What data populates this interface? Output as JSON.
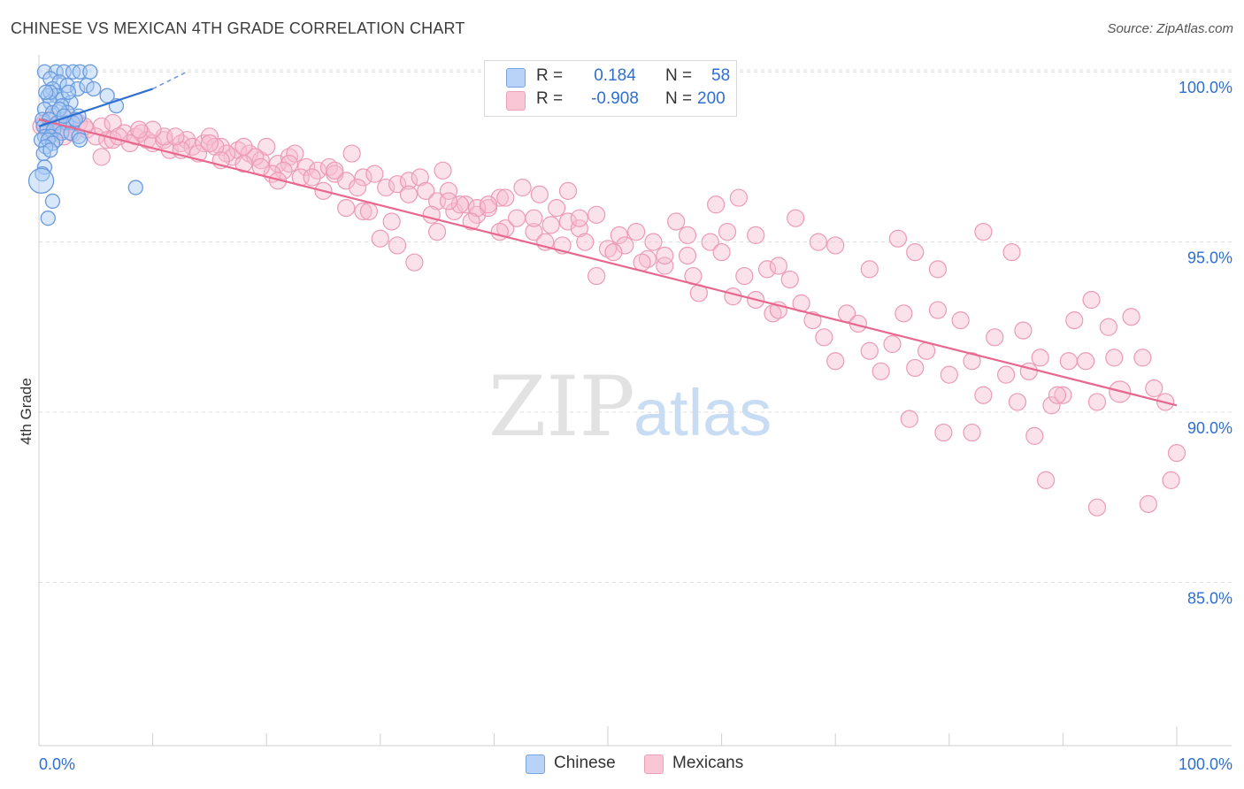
{
  "header": {
    "title": "CHINESE VS MEXICAN 4TH GRADE CORRELATION CHART",
    "source": "Source: ZipAtlas.com"
  },
  "watermark": {
    "zip": "ZIP",
    "atlas": "atlas"
  },
  "legend": {
    "chinese": {
      "r_label": "R =",
      "r_value": "0.184",
      "n_label": "N =",
      "n_value": "58"
    },
    "mexicans": {
      "r_label": "R =",
      "r_value": "-0.908",
      "n_label": "N =",
      "n_value": "200"
    }
  },
  "bottom_legend": {
    "chinese": "Chinese",
    "mexicans": "Mexicans"
  },
  "colors": {
    "chinese_fill": "#a9c9f5",
    "chinese_stroke": "#6a9bdc",
    "chinese_line": "#2e6fd1",
    "mexican_fill": "#f7bcd0",
    "mexican_stroke": "#ec9ab6",
    "mexican_line": "#e8678f",
    "axis_text": "#2e6fd1",
    "grid": "#dcdcdc"
  },
  "chart_data": {
    "type": "scatter",
    "title": "CHINESE VS MEXICAN 4TH GRADE CORRELATION CHART",
    "xlabel": "",
    "ylabel": "4th Grade",
    "xlim": [
      0,
      100
    ],
    "ylim": [
      80.2,
      100.5
    ],
    "x_tick_labels": [
      "0.0%",
      "100.0%"
    ],
    "y_ticks": [
      {
        "value": 85,
        "label": "85.0%"
      },
      {
        "value": 90,
        "label": "90.0%"
      },
      {
        "value": 95,
        "label": "95.0%"
      },
      {
        "value": 100,
        "label": "100.0%"
      }
    ],
    "series": [
      {
        "name": "Chinese",
        "R": 0.184,
        "N": 58,
        "trend": {
          "x0": 0,
          "y0": 98.4,
          "x1": 10,
          "y1": 99.5,
          "dash_to_x": 13,
          "dash_to_y": 100.0
        },
        "points": [
          [
            0.5,
            100.0
          ],
          [
            1.5,
            100.0
          ],
          [
            2.2,
            100.0
          ],
          [
            3.0,
            100.0
          ],
          [
            3.6,
            100.0
          ],
          [
            4.5,
            100.0
          ],
          [
            1.0,
            99.8
          ],
          [
            1.8,
            99.7
          ],
          [
            2.5,
            99.6
          ],
          [
            3.4,
            99.5
          ],
          [
            4.2,
            99.6
          ],
          [
            1.2,
            99.5
          ],
          [
            0.8,
            99.3
          ],
          [
            1.5,
            99.3
          ],
          [
            2.1,
            99.2
          ],
          [
            2.8,
            99.1
          ],
          [
            6.0,
            99.3
          ],
          [
            1.0,
            99.1
          ],
          [
            2.0,
            99.0
          ],
          [
            6.8,
            99.0
          ],
          [
            0.5,
            98.9
          ],
          [
            1.2,
            98.8
          ],
          [
            2.5,
            98.8
          ],
          [
            3.5,
            98.7
          ],
          [
            0.3,
            98.6
          ],
          [
            0.9,
            98.6
          ],
          [
            1.6,
            98.5
          ],
          [
            2.4,
            98.5
          ],
          [
            3.0,
            98.5
          ],
          [
            0.4,
            98.4
          ],
          [
            0.7,
            98.3
          ],
          [
            1.3,
            98.3
          ],
          [
            2.0,
            98.2
          ],
          [
            2.8,
            98.2
          ],
          [
            3.5,
            98.1
          ],
          [
            0.5,
            98.1
          ],
          [
            1.0,
            98.1
          ],
          [
            1.5,
            98.0
          ],
          [
            0.2,
            98.0
          ],
          [
            0.8,
            98.0
          ],
          [
            1.2,
            97.9
          ],
          [
            0.6,
            97.8
          ],
          [
            3.6,
            98.0
          ],
          [
            0.4,
            97.6
          ],
          [
            1.0,
            97.7
          ],
          [
            0.5,
            97.2
          ],
          [
            0.3,
            97.0
          ],
          [
            0.2,
            96.8
          ],
          [
            1.2,
            96.2
          ],
          [
            8.5,
            96.6
          ],
          [
            0.8,
            95.7
          ],
          [
            1.0,
            99.4
          ],
          [
            2.6,
            99.4
          ],
          [
            4.8,
            99.5
          ],
          [
            0.6,
            99.4
          ],
          [
            1.8,
            98.9
          ],
          [
            3.2,
            98.6
          ],
          [
            2.2,
            98.7
          ]
        ]
      },
      {
        "name": "Mexicans",
        "R": -0.908,
        "N": 200,
        "trend": {
          "x0": 0,
          "y0": 98.6,
          "x1": 100,
          "y1": 90.2
        },
        "points": [
          [
            0.5,
            98.5
          ],
          [
            1.5,
            98.4
          ],
          [
            2.5,
            98.6
          ],
          [
            3.5,
            98.5
          ],
          [
            1.2,
            98.2
          ],
          [
            2.2,
            98.1
          ],
          [
            4.2,
            98.3
          ],
          [
            5.5,
            98.4
          ],
          [
            6.5,
            98.5
          ],
          [
            5.0,
            98.1
          ],
          [
            6.0,
            98.0
          ],
          [
            7.5,
            98.2
          ],
          [
            8.5,
            98.1
          ],
          [
            9.0,
            98.2
          ],
          [
            9.5,
            98.0
          ],
          [
            10.0,
            97.9
          ],
          [
            11.0,
            98.0
          ],
          [
            11.5,
            97.7
          ],
          [
            12.5,
            97.9
          ],
          [
            13.0,
            98.0
          ],
          [
            13.5,
            97.8
          ],
          [
            14.5,
            97.9
          ],
          [
            15.0,
            98.1
          ],
          [
            16.0,
            97.8
          ],
          [
            17.0,
            97.5
          ],
          [
            17.5,
            97.7
          ],
          [
            18.5,
            97.6
          ],
          [
            19.5,
            97.4
          ],
          [
            20.0,
            97.8
          ],
          [
            21.0,
            97.3
          ],
          [
            22.0,
            97.5
          ],
          [
            22.5,
            97.6
          ],
          [
            23.5,
            97.2
          ],
          [
            24.5,
            97.1
          ],
          [
            25.5,
            97.2
          ],
          [
            26.0,
            97.0
          ],
          [
            27.0,
            96.8
          ],
          [
            27.5,
            97.6
          ],
          [
            28.5,
            96.9
          ],
          [
            29.5,
            97.0
          ],
          [
            30.5,
            96.6
          ],
          [
            31.5,
            96.7
          ],
          [
            32.5,
            96.8
          ],
          [
            33.5,
            96.9
          ],
          [
            34.0,
            96.5
          ],
          [
            35.0,
            96.2
          ],
          [
            35.5,
            97.1
          ],
          [
            36.5,
            95.9
          ],
          [
            37.5,
            96.1
          ],
          [
            38.5,
            95.8
          ],
          [
            39.5,
            96.0
          ],
          [
            40.5,
            96.3
          ],
          [
            41.0,
            95.4
          ],
          [
            42.0,
            95.7
          ],
          [
            43.5,
            95.3
          ],
          [
            44.5,
            95.0
          ],
          [
            45.0,
            95.5
          ],
          [
            46.0,
            94.9
          ],
          [
            46.5,
            95.6
          ],
          [
            47.5,
            95.4
          ],
          [
            48.0,
            95.0
          ],
          [
            49.0,
            95.8
          ],
          [
            50.0,
            94.8
          ],
          [
            51.0,
            95.2
          ],
          [
            51.5,
            94.9
          ],
          [
            52.5,
            95.3
          ],
          [
            53.5,
            94.5
          ],
          [
            54.0,
            95.0
          ],
          [
            55.0,
            94.3
          ],
          [
            56.0,
            95.6
          ],
          [
            57.0,
            94.6
          ],
          [
            57.5,
            94.0
          ],
          [
            58.0,
            93.5
          ],
          [
            59.0,
            95.0
          ],
          [
            60.0,
            94.7
          ],
          [
            60.5,
            95.3
          ],
          [
            61.0,
            93.4
          ],
          [
            62.0,
            94.0
          ],
          [
            63.0,
            93.3
          ],
          [
            64.0,
            94.2
          ],
          [
            64.5,
            92.9
          ],
          [
            65.0,
            93.0
          ],
          [
            66.0,
            93.9
          ],
          [
            67.0,
            93.2
          ],
          [
            68.0,
            92.7
          ],
          [
            69.0,
            92.2
          ],
          [
            70.0,
            91.5
          ],
          [
            71.0,
            92.9
          ],
          [
            72.0,
            92.6
          ],
          [
            73.0,
            91.8
          ],
          [
            74.0,
            91.2
          ],
          [
            75.0,
            92.0
          ],
          [
            76.0,
            92.9
          ],
          [
            77.0,
            91.3
          ],
          [
            78.0,
            91.8
          ],
          [
            79.0,
            93.0
          ],
          [
            80.0,
            91.1
          ],
          [
            81.0,
            92.7
          ],
          [
            82.0,
            91.5
          ],
          [
            83.0,
            90.5
          ],
          [
            84.0,
            92.2
          ],
          [
            85.0,
            91.1
          ],
          [
            86.0,
            90.3
          ],
          [
            86.5,
            92.4
          ],
          [
            87.0,
            91.2
          ],
          [
            88.0,
            91.6
          ],
          [
            89.0,
            90.2
          ],
          [
            90.0,
            90.5
          ],
          [
            91.0,
            92.7
          ],
          [
            92.0,
            91.5
          ],
          [
            93.0,
            90.3
          ],
          [
            94.0,
            92.5
          ],
          [
            95.0,
            90.6
          ],
          [
            96.0,
            92.8
          ],
          [
            97.0,
            91.6
          ],
          [
            98.0,
            90.7
          ],
          [
            99.0,
            90.3
          ],
          [
            100.0,
            88.8
          ],
          [
            99.5,
            88.0
          ],
          [
            97.5,
            87.3
          ],
          [
            93.0,
            87.2
          ],
          [
            88.5,
            88.0
          ],
          [
            87.5,
            89.3
          ],
          [
            82.0,
            89.4
          ],
          [
            79.5,
            89.4
          ],
          [
            76.5,
            89.8
          ],
          [
            94.5,
            91.6
          ],
          [
            92.5,
            93.3
          ],
          [
            90.5,
            91.5
          ],
          [
            89.5,
            90.5
          ],
          [
            85.5,
            94.7
          ],
          [
            83.0,
            95.3
          ],
          [
            79.0,
            94.2
          ],
          [
            77.0,
            94.7
          ],
          [
            75.5,
            95.1
          ],
          [
            73.0,
            94.2
          ],
          [
            70.0,
            94.9
          ],
          [
            68.5,
            95.0
          ],
          [
            66.5,
            95.7
          ],
          [
            65.0,
            94.3
          ],
          [
            63.0,
            95.2
          ],
          [
            61.5,
            96.3
          ],
          [
            59.5,
            96.1
          ],
          [
            57.0,
            95.2
          ],
          [
            55.0,
            94.6
          ],
          [
            53.0,
            94.4
          ],
          [
            50.5,
            94.7
          ],
          [
            49.0,
            94.0
          ],
          [
            47.5,
            95.7
          ],
          [
            46.5,
            96.5
          ],
          [
            45.5,
            96.0
          ],
          [
            44.0,
            96.4
          ],
          [
            42.5,
            96.6
          ],
          [
            41.0,
            96.3
          ],
          [
            38.5,
            96.0
          ],
          [
            37.0,
            96.1
          ],
          [
            36.0,
            96.5
          ],
          [
            35.0,
            95.3
          ],
          [
            33.0,
            94.4
          ],
          [
            31.5,
            94.9
          ],
          [
            30.0,
            95.1
          ],
          [
            28.5,
            95.9
          ],
          [
            27.0,
            96.0
          ],
          [
            25.0,
            96.5
          ],
          [
            23.0,
            96.9
          ],
          [
            22.0,
            97.3
          ],
          [
            21.5,
            97.1
          ],
          [
            20.5,
            97.0
          ],
          [
            19.0,
            97.5
          ],
          [
            18.0,
            97.3
          ],
          [
            16.5,
            97.6
          ],
          [
            15.5,
            97.8
          ],
          [
            14.0,
            97.6
          ],
          [
            12.5,
            97.7
          ],
          [
            11.0,
            98.1
          ],
          [
            10.0,
            98.3
          ],
          [
            8.0,
            97.9
          ],
          [
            6.5,
            98.0
          ],
          [
            5.5,
            97.5
          ],
          [
            4.0,
            98.4
          ],
          [
            3.0,
            98.2
          ],
          [
            2.0,
            98.3
          ],
          [
            1.0,
            98.6
          ],
          [
            0.2,
            98.4
          ],
          [
            7.0,
            98.1
          ],
          [
            8.8,
            98.3
          ],
          [
            12.0,
            98.1
          ],
          [
            15.0,
            97.9
          ],
          [
            16.0,
            97.4
          ],
          [
            18.0,
            97.8
          ],
          [
            19.5,
            97.2
          ],
          [
            21.0,
            96.8
          ],
          [
            24.0,
            96.9
          ],
          [
            26.0,
            97.1
          ],
          [
            28.0,
            96.6
          ],
          [
            29.0,
            95.9
          ],
          [
            31.0,
            95.6
          ],
          [
            32.5,
            96.4
          ],
          [
            34.5,
            95.8
          ],
          [
            36.0,
            96.2
          ],
          [
            38.0,
            95.6
          ],
          [
            39.5,
            96.1
          ],
          [
            40.5,
            95.3
          ],
          [
            43.5,
            95.7
          ]
        ]
      }
    ]
  },
  "axis": {
    "x_left_label": "0.0%",
    "x_right_label": "100.0%",
    "y_label": "4th Grade",
    "y_tick_labels": [
      "85.0%",
      "90.0%",
      "95.0%",
      "100.0%"
    ]
  }
}
